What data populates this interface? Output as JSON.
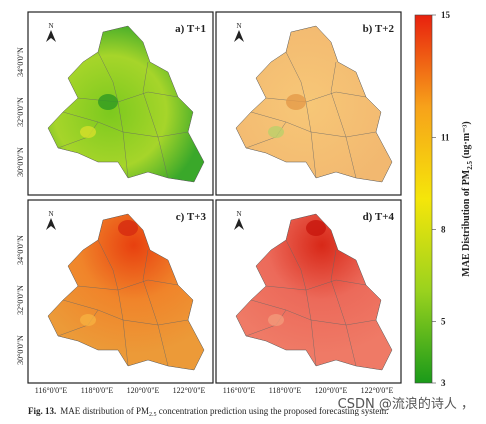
{
  "panels": [
    {
      "label": "a) T+1"
    },
    {
      "label": "b) T+2"
    },
    {
      "label": "c) T+3"
    },
    {
      "label": "d) T+4"
    }
  ],
  "north": "N",
  "lat_labels": [
    "34°0'0\"N",
    "32°0'0\"N",
    "30°0'0\"N"
  ],
  "lon_labels": [
    "116°0'0\"E",
    "118°0'0\"E",
    "120°0'0\"E",
    "122°0'0\"E"
  ],
  "colorbar": {
    "title": [
      "MAE Distribution of PM",
      "2.5",
      " (ug·m⁻³)"
    ],
    "range": [
      3,
      15
    ],
    "ticks": [
      3,
      5,
      8,
      11,
      15
    ],
    "colors": [
      "#1a9a1a",
      "#9ad21e",
      "#f5e60a",
      "#f7a21a",
      "#e8210e"
    ]
  },
  "caption": {
    "label": "Fig. 13.",
    "text": [
      "MAE distribution of PM",
      "2.5",
      " concentration prediction using the proposed forecasting system."
    ]
  },
  "watermark": "CSDN @流浪的诗人 ，"
}
